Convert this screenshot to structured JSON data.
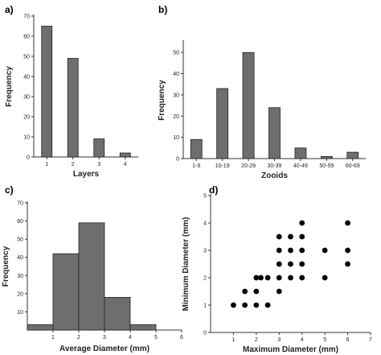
{
  "chart_data": [
    {
      "panel_label": "a)",
      "type": "bar",
      "xlabel": "Layers",
      "ylabel": "Frequency",
      "categories": [
        "1",
        "2",
        "3",
        "4"
      ],
      "values": [
        65,
        49,
        9,
        2
      ],
      "ylim": [
        0,
        70
      ],
      "yticks": [
        0,
        10,
        20,
        30,
        40,
        50,
        60,
        70
      ],
      "grid": false
    },
    {
      "panel_label": "b)",
      "type": "bar",
      "xlabel": "Zooids",
      "ylabel": "Frequency",
      "categories": [
        "1-9",
        "10-19",
        "20-29",
        "30-39",
        "40-49",
        "50-59",
        "60-69"
      ],
      "values": [
        9,
        33,
        50,
        24,
        5,
        1,
        3
      ],
      "ylim": [
        0,
        55
      ],
      "yticks": [
        0,
        10,
        20,
        30,
        40,
        50
      ],
      "grid": false
    },
    {
      "panel_label": "c)",
      "type": "bar",
      "subtype": "histogram",
      "xlabel": "Average Diameter (mm)",
      "ylabel": "Frequency",
      "bins": [
        [
          0,
          1
        ],
        [
          1,
          2
        ],
        [
          2,
          3
        ],
        [
          3,
          4
        ],
        [
          4,
          5
        ]
      ],
      "values": [
        3,
        42,
        59,
        18,
        3
      ],
      "xlim": [
        0,
        6
      ],
      "xticks": [
        1,
        2,
        3,
        4,
        5,
        6
      ],
      "ylim": [
        0,
        70
      ],
      "yticks": [
        10,
        20,
        30,
        40,
        50,
        60,
        70
      ],
      "grid": false
    },
    {
      "panel_label": "d)",
      "type": "scatter",
      "xlabel": "Maximum Diameter (mm)",
      "ylabel": "Minimum Diameter (mm)",
      "x": [
        1,
        1.5,
        1.5,
        2,
        2,
        2,
        2.2,
        2.5,
        2.5,
        3,
        3,
        3,
        3,
        3,
        3.5,
        3.5,
        3.5,
        3.5,
        4,
        4,
        4,
        4,
        4,
        5,
        5,
        6,
        6,
        6
      ],
      "y": [
        1,
        1,
        1.5,
        1,
        1.5,
        2,
        2,
        1,
        2,
        1.5,
        2,
        2.5,
        3,
        3.5,
        2,
        2.5,
        3,
        3.5,
        2,
        2.5,
        3,
        3.5,
        4,
        2,
        3,
        2.5,
        3,
        4
      ],
      "xlim": [
        0,
        7
      ],
      "xticks": [
        1,
        2,
        3,
        4,
        5,
        6,
        7
      ],
      "ylim": [
        0,
        5
      ],
      "yticks": [
        0,
        1,
        2,
        3,
        4,
        5
      ],
      "grid": false
    }
  ]
}
